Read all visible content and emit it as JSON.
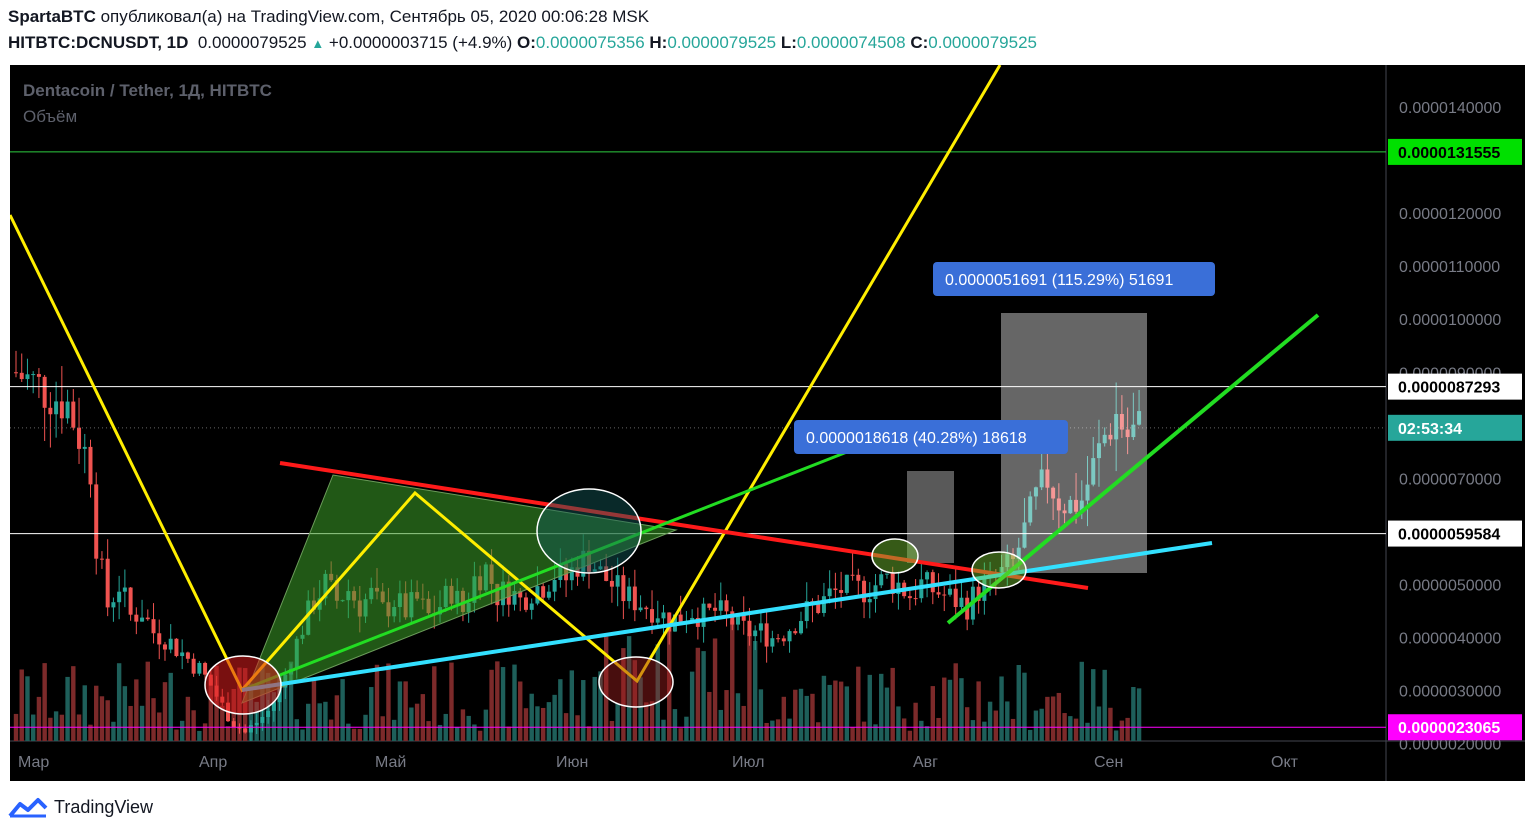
{
  "header": {
    "author": "SpartaBTC",
    "published_text": "опубликовал(а) на TradingView.com, Сентябрь 05, 2020 00:06:28 MSK",
    "symbol": "HITBTC:DCNUSDT, 1D",
    "last": "0.0000079525",
    "change": "+0.0000003715 (+4.9%)",
    "o_label": "O:",
    "o": "0.0000075356",
    "h_label": "H:",
    "h": "0.0000079525",
    "l_label": "L:",
    "l": "0.0000074508",
    "c_label": "C:",
    "c": "0.0000079525"
  },
  "legend": {
    "title": "Dentacoin / Tether, 1Д, HITBTC",
    "volume": "Объём"
  },
  "footer": {
    "brand": "TradingView"
  },
  "colors": {
    "up": "#26a69a",
    "down": "#ef5350",
    "vol_up": "#1e5f5a",
    "vol_down": "#7c2a2a",
    "yellow": "#ffee00",
    "red": "#ff1a1a",
    "green": "#22dd22",
    "cyan": "#33e0ff",
    "magenta": "#ff00ff",
    "grid_green": "#2ecc40"
  },
  "chart_data": {
    "type": "candlestick",
    "title": "Dentacoin / Tether, 1Д, HITBTC",
    "y_axis": {
      "min": 1.5e-06,
      "max": 1.47e-05,
      "ticks": [
        "0.0000020000",
        "0.0000030000",
        "0.0000040000",
        "0.0000050000",
        "0.0000070000",
        "0.0000080000",
        "0.0000090000",
        "0.0000100000",
        "0.0000110000",
        "0.0000120000",
        "0.0000140000"
      ]
    },
    "x_axis": {
      "labels": [
        "Мар",
        "Апр",
        "Май",
        "Июн",
        "Июл",
        "Авг",
        "Сен",
        "Окт"
      ]
    },
    "price_labels": [
      {
        "text": "0.0000131555",
        "value": 1.31555e-05,
        "bg": "#00e000",
        "fg": "#000000"
      },
      {
        "text": "0.0000087293",
        "value": 8.7293e-06,
        "bg": "#ffffff",
        "fg": "#000000"
      },
      {
        "text": "02:53:34",
        "value": 7.9525e-06,
        "bg": "#26a69a",
        "fg": "#ffffff"
      },
      {
        "text": "0.0000059584",
        "value": 5.9584e-06,
        "bg": "#ffffff",
        "fg": "#000000"
      },
      {
        "text": "0.0000023065",
        "value": 2.3065e-06,
        "bg": "#ff00ff",
        "fg": "#ffffff"
      }
    ],
    "horizontal_lines": [
      {
        "value": 1.31555e-05,
        "color": "#2ecc40"
      },
      {
        "value": 8.7293e-06,
        "color": "#ffffff"
      },
      {
        "value": 5.9584e-06,
        "color": "#ffffff"
      },
      {
        "value": 2.3065e-06,
        "color": "#ff00ff"
      }
    ],
    "measure_boxes": [
      {
        "label": "0.0000018618 (40.28%) 18618"
      },
      {
        "label": "0.0000051691 (115.29%) 51691"
      }
    ],
    "price_path": [
      [
        0,
        9e-06
      ],
      [
        3,
        8.8e-06
      ],
      [
        6,
        8.6e-06
      ],
      [
        9,
        8.4e-06
      ],
      [
        11,
        7.8e-06
      ],
      [
        13,
        7.2e-06
      ],
      [
        14,
        5.8e-06
      ],
      [
        16,
        4.6e-06
      ],
      [
        18,
        5e-06
      ],
      [
        20,
        4.4e-06
      ],
      [
        22,
        4.5e-06
      ],
      [
        24,
        4.1e-06
      ],
      [
        26,
        4e-06
      ],
      [
        28,
        3.8e-06
      ],
      [
        30,
        3.6e-06
      ],
      [
        32,
        3.4e-06
      ],
      [
        34,
        3.1e-06
      ],
      [
        36,
        2.7e-06
      ],
      [
        38,
        2.4e-06
      ],
      [
        40,
        2.2e-06
      ],
      [
        42,
        2.4e-06
      ],
      [
        44,
        2.6e-06
      ],
      [
        46,
        3e-06
      ],
      [
        48,
        3.6e-06
      ],
      [
        50,
        4.2e-06
      ],
      [
        52,
        4.7e-06
      ],
      [
        54,
        5e-06
      ],
      [
        56,
        4.7e-06
      ],
      [
        58,
        4.9e-06
      ],
      [
        60,
        4.6e-06
      ],
      [
        62,
        4.8e-06
      ],
      [
        64,
        4.5e-06
      ],
      [
        66,
        4.7e-06
      ],
      [
        68,
        4.5e-06
      ],
      [
        70,
        4.7e-06
      ],
      [
        72,
        4.4e-06
      ],
      [
        74,
        4.6e-06
      ],
      [
        76,
        4.9e-06
      ],
      [
        78,
        4.5e-06
      ],
      [
        80,
        5.1e-06
      ],
      [
        82,
        5.3e-06
      ],
      [
        84,
        4.8e-06
      ],
      [
        86,
        4.9e-06
      ],
      [
        88,
        4.7e-06
      ],
      [
        90,
        4.9e-06
      ],
      [
        92,
        5e-06
      ],
      [
        94,
        5.2e-06
      ],
      [
        96,
        5.1e-06
      ],
      [
        98,
        5.4e-06
      ],
      [
        100,
        5.5e-06
      ],
      [
        102,
        5.2e-06
      ],
      [
        104,
        5e-06
      ],
      [
        106,
        4.8e-06
      ],
      [
        108,
        4.7e-06
      ],
      [
        110,
        4.6e-06
      ],
      [
        112,
        4.5e-06
      ],
      [
        114,
        4.3e-06
      ],
      [
        116,
        4.4e-06
      ],
      [
        118,
        4.5e-06
      ],
      [
        120,
        4.4e-06
      ],
      [
        122,
        4.5e-06
      ],
      [
        124,
        4.4e-06
      ],
      [
        126,
        4.2e-06
      ],
      [
        128,
        4.1e-06
      ],
      [
        130,
        4.1e-06
      ],
      [
        132,
        4e-06
      ],
      [
        134,
        4.1e-06
      ],
      [
        136,
        4.3e-06
      ],
      [
        138,
        4.5e-06
      ],
      [
        140,
        4.6e-06
      ],
      [
        142,
        4.8e-06
      ],
      [
        144,
        4.9e-06
      ],
      [
        146,
        4.9e-06
      ],
      [
        148,
        4.9e-06
      ],
      [
        150,
        5e-06
      ],
      [
        152,
        5.1e-06
      ],
      [
        154,
        5e-06
      ],
      [
        156,
        4.8e-06
      ],
      [
        158,
        5e-06
      ],
      [
        160,
        4.9e-06
      ],
      [
        162,
        4.8e-06
      ],
      [
        164,
        4.7e-06
      ],
      [
        166,
        4.6e-06
      ],
      [
        168,
        4.9e-06
      ],
      [
        170,
        5e-06
      ],
      [
        172,
        5.2e-06
      ],
      [
        174,
        5.4e-06
      ],
      [
        176,
        6e-06
      ],
      [
        178,
        6.6e-06
      ],
      [
        180,
        7e-06
      ],
      [
        182,
        6.6e-06
      ],
      [
        184,
        6.5e-06
      ],
      [
        186,
        6.6e-06
      ],
      [
        188,
        7.2e-06
      ],
      [
        190,
        7.8e-06
      ],
      [
        192,
        8.2e-06
      ],
      [
        194,
        7.8e-06
      ],
      [
        196,
        7.9525e-06
      ]
    ]
  }
}
